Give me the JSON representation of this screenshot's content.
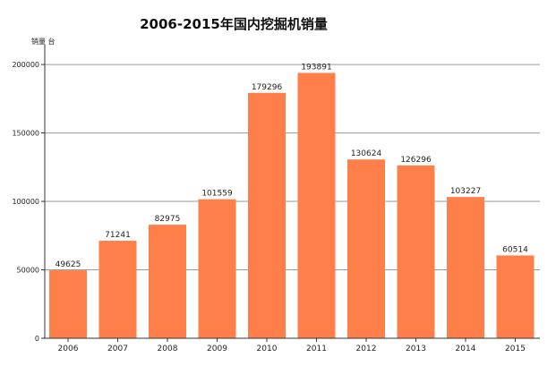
{
  "chart_data": {
    "type": "bar",
    "title": "2006-2015年国内挖掘机销量",
    "ylabel": "销量 台",
    "xlabel": "",
    "categories": [
      "2006",
      "2007",
      "2008",
      "2009",
      "2010",
      "2011",
      "2012",
      "2013",
      "2014",
      "2015"
    ],
    "values": [
      49625,
      71241,
      82975,
      101559,
      179296,
      193891,
      130624,
      126296,
      103227,
      60514
    ],
    "data_labels": [
      "49625",
      "71241",
      "82975",
      "101559",
      "179296",
      "193891",
      "130624",
      "126296",
      "103227",
      "60514"
    ],
    "ylim": [
      0,
      212500
    ],
    "yticks": [
      0,
      50000,
      100000,
      150000,
      200000
    ],
    "ytick_labels": [
      "0",
      "50000",
      "100000",
      "150000",
      "200000"
    ],
    "grid": true,
    "legend": "none",
    "colors": {
      "bar": "#FF7F4A",
      "grid": "#9a9a9a",
      "axis": "#333333",
      "text": "#222222"
    }
  }
}
